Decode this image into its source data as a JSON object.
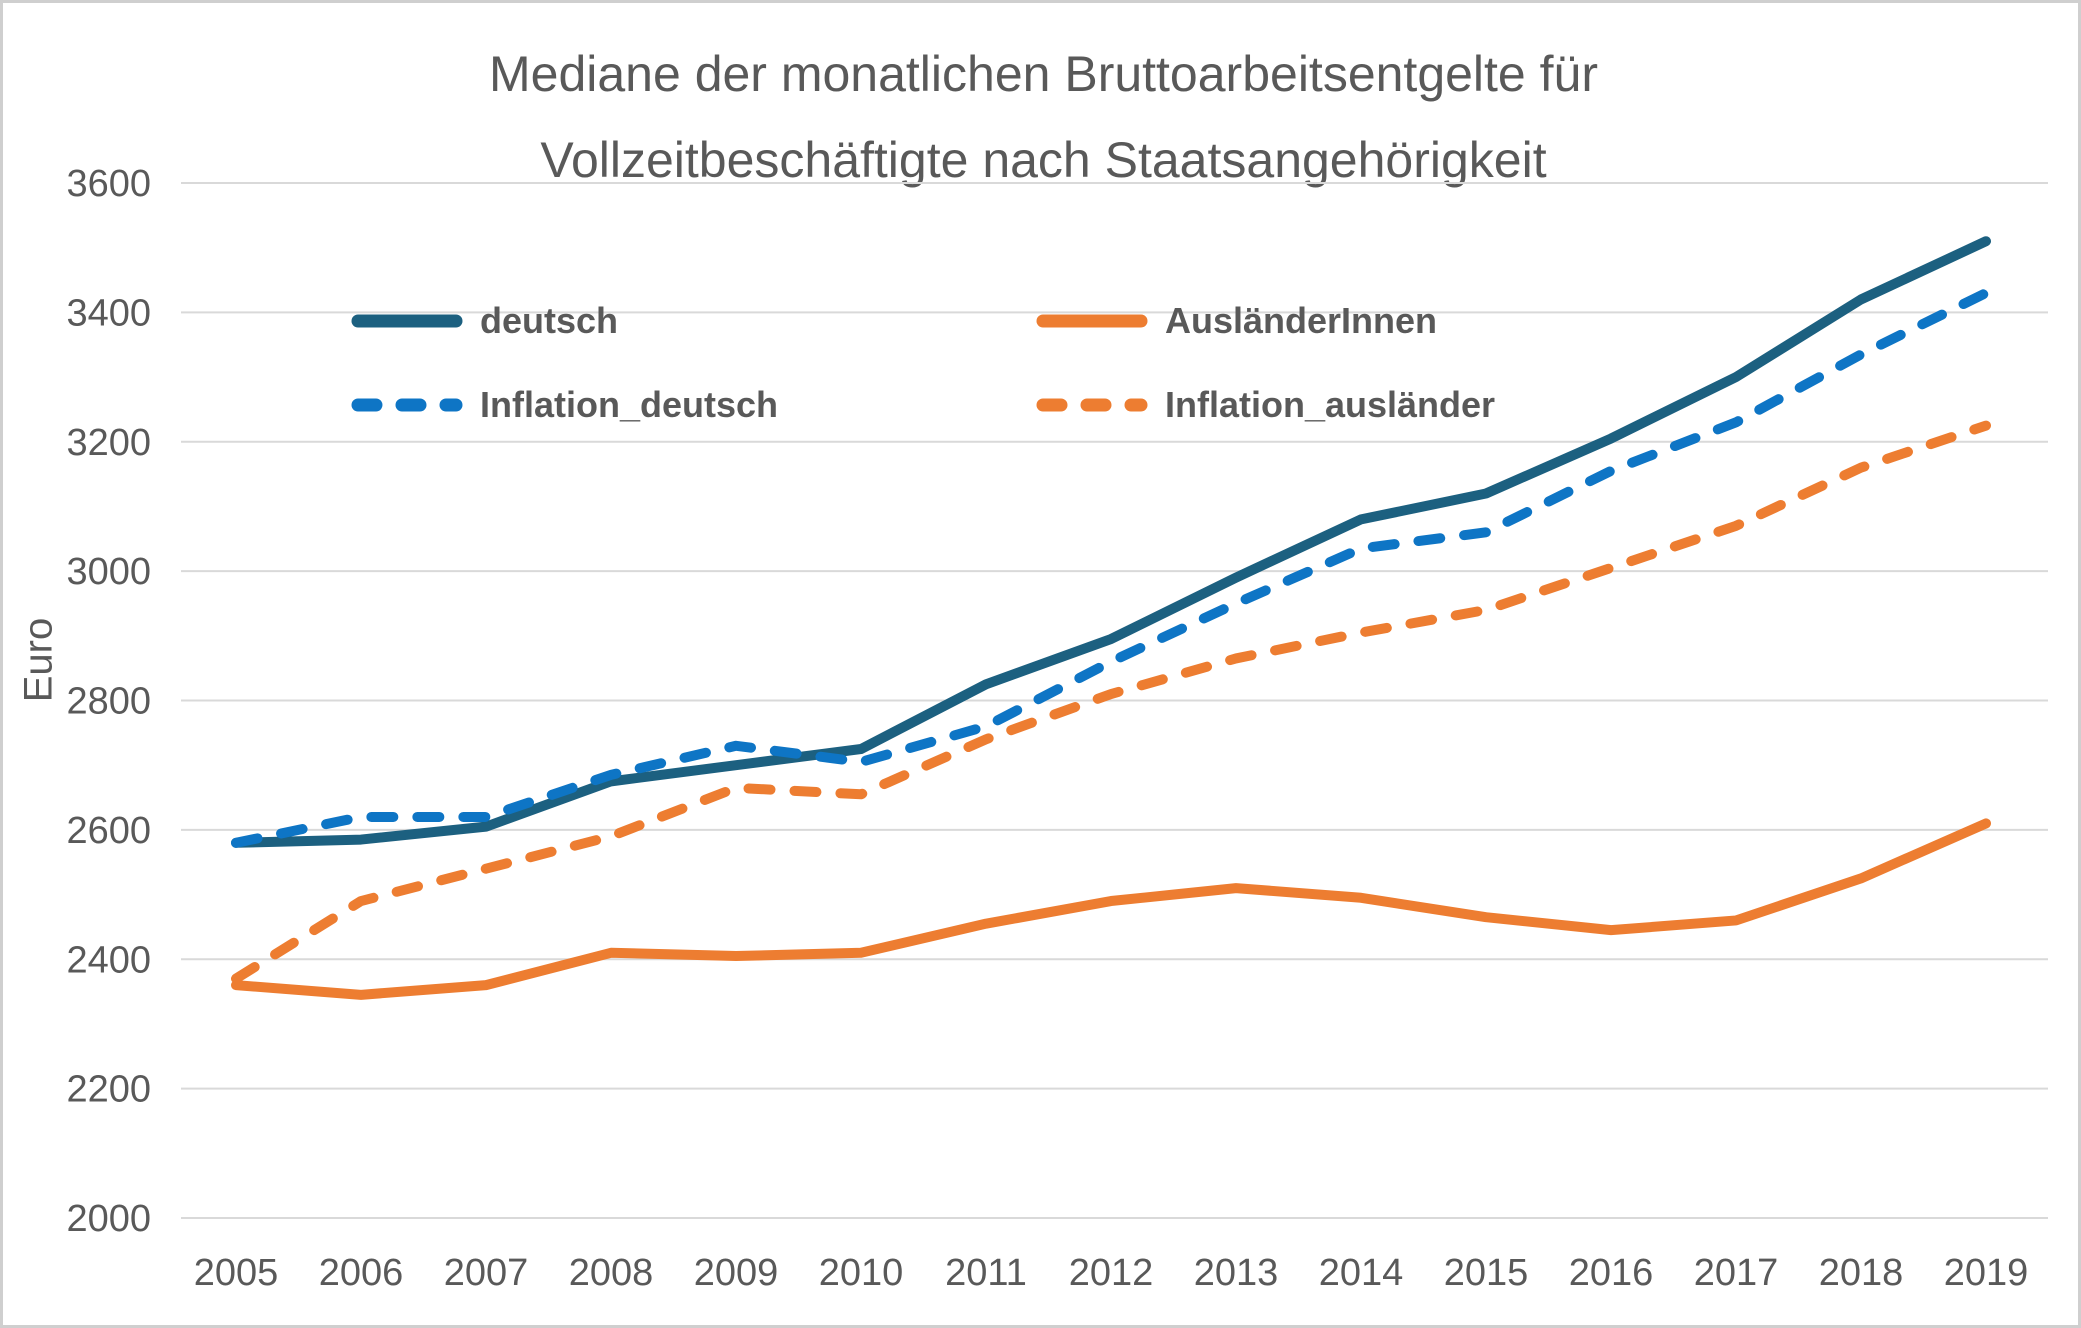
{
  "title": {
    "line1": "Mediane der monatlichen Bruttoarbeitsentgelte für",
    "line2": "Vollzeitbeschäftigte nach Staatsangehörigkeit"
  },
  "y_axis": {
    "label": "Euro",
    "ticks": [
      2000,
      2200,
      2400,
      2600,
      2800,
      3000,
      3200,
      3400,
      3600
    ]
  },
  "x_axis": {
    "years": [
      2005,
      2006,
      2007,
      2008,
      2009,
      2010,
      2011,
      2012,
      2013,
      2014,
      2015,
      2016,
      2017,
      2018,
      2019
    ]
  },
  "legend": {
    "items": [
      {
        "label": "deutsch",
        "color": "#1c6080",
        "dashed": false
      },
      {
        "label": "AusländerInnen",
        "color": "#ed7d31",
        "dashed": false
      },
      {
        "label": "Inflation_deutsch",
        "color": "#0e75c5",
        "dashed": true
      },
      {
        "label": "Inflation_ausländer",
        "color": "#ed7d31",
        "dashed": true
      }
    ]
  },
  "colors": {
    "gridline": "#d9d9d9",
    "axis_text": "#595959",
    "title_text": "#595959",
    "deutsch": "#1c6080",
    "auslaender": "#ed7d31",
    "inflation_deutsch": "#0e75c5",
    "inflation_auslaender": "#ed7d31"
  },
  "chart_data": {
    "type": "line",
    "title": "Mediane der monatlichen Bruttoarbeitsentgelte für Vollzeitbeschäftigte nach Staatsangehörigkeit",
    "xlabel": "",
    "ylabel": "Euro",
    "x": [
      2005,
      2006,
      2007,
      2008,
      2009,
      2010,
      2011,
      2012,
      2013,
      2014,
      2015,
      2016,
      2017,
      2018,
      2019
    ],
    "ylim": [
      2000,
      3600
    ],
    "ytick_step": 200,
    "grid": true,
    "legend_position": "top-inside-two-columns",
    "series": [
      {
        "name": "deutsch",
        "style": "solid",
        "color": "#1c6080",
        "values": [
          2580,
          2585,
          2605,
          2675,
          2700,
          2725,
          2825,
          2895,
          2990,
          3080,
          3120,
          3205,
          3300,
          3420,
          3510
        ]
      },
      {
        "name": "AusländerInnen",
        "style": "solid",
        "color": "#ed7d31",
        "values": [
          2360,
          2345,
          2360,
          2410,
          2405,
          2410,
          2455,
          2490,
          2510,
          2495,
          2465,
          2445,
          2460,
          2525,
          2610
        ]
      },
      {
        "name": "Inflation_deutsch",
        "style": "dashed",
        "color": "#0e75c5",
        "values": [
          2580,
          2620,
          2620,
          2685,
          2730,
          2705,
          2760,
          2860,
          2950,
          3035,
          3060,
          3155,
          3230,
          3335,
          3430
        ]
      },
      {
        "name": "Inflation_ausländer",
        "style": "dashed",
        "color": "#ed7d31",
        "values": [
          2370,
          2490,
          2540,
          2590,
          2665,
          2655,
          2740,
          2810,
          2865,
          2905,
          2940,
          3005,
          3070,
          3160,
          3225
        ]
      }
    ]
  }
}
